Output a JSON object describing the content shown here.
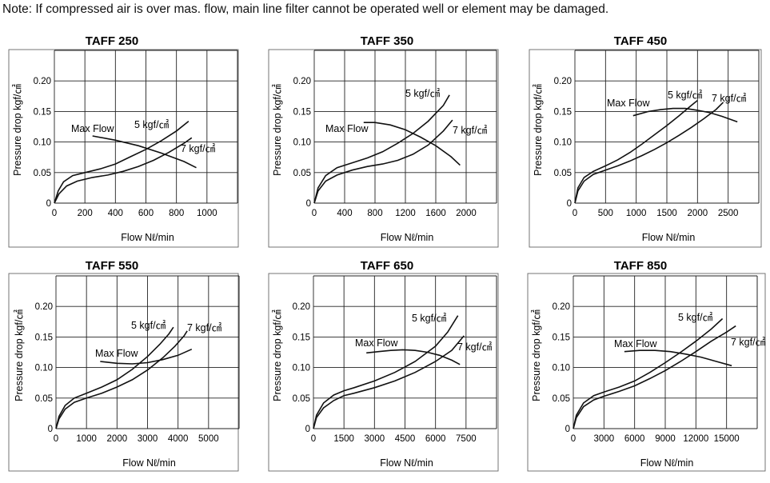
{
  "note": "Note: If compressed air is over mas. flow, main line filter cannot be operated well or element may be damaged.",
  "chart_data": [
    {
      "type": "line",
      "title": "TAFF 250",
      "xlabel": "Flow Nℓ/min",
      "ylabel": "Pressure drop kgf/㎠",
      "x_ticks": [
        0,
        200,
        400,
        600,
        800,
        1000
      ],
      "y_ticks": [
        0,
        0.05,
        0.1,
        0.15,
        0.2
      ],
      "y_tick_labels": [
        "0",
        "0.05",
        "0.10",
        "0.15",
        "0.20"
      ],
      "xlim": [
        0,
        1200
      ],
      "ylim": [
        0,
        0.25
      ],
      "annotations": [
        {
          "text": "Max Flow"
        },
        {
          "text": "5 kgf/㎠"
        },
        {
          "text": "7 kgf/㎠"
        }
      ],
      "series": [
        {
          "name": "5 kgf/㎠",
          "x": [
            0,
            25,
            60,
            120,
            200,
            300,
            400,
            500,
            600,
            700,
            800,
            880
          ],
          "y": [
            0,
            0.02,
            0.035,
            0.045,
            0.05,
            0.056,
            0.064,
            0.076,
            0.088,
            0.102,
            0.118,
            0.134
          ]
        },
        {
          "name": "7 kgf/㎠",
          "x": [
            0,
            30,
            80,
            150,
            250,
            350,
            450,
            550,
            650,
            750,
            850,
            900
          ],
          "y": [
            0,
            0.015,
            0.028,
            0.036,
            0.042,
            0.046,
            0.052,
            0.06,
            0.07,
            0.083,
            0.098,
            0.107
          ]
        },
        {
          "name": "Max Flow",
          "x": [
            250,
            400,
            550,
            700,
            850,
            930
          ],
          "y": [
            0.11,
            0.103,
            0.094,
            0.082,
            0.068,
            0.058
          ]
        }
      ]
    },
    {
      "type": "line",
      "title": "TAFF 350",
      "xlabel": "Flow Nℓ/min",
      "ylabel": "Pressure drop kgf/㎠",
      "x_ticks": [
        0,
        400,
        800,
        1200,
        1600,
        2000
      ],
      "y_ticks": [
        0,
        0.05,
        0.1,
        0.15,
        0.2
      ],
      "y_tick_labels": [
        "0",
        "0.05",
        "0.10",
        "0.15",
        "0.20"
      ],
      "xlim": [
        0,
        2400
      ],
      "ylim": [
        0,
        0.25
      ],
      "annotations": [
        {
          "text": "Max Flow"
        },
        {
          "text": "5 kgf/㎠"
        },
        {
          "text": "7 kgf/㎠"
        }
      ],
      "series": [
        {
          "name": "5 kgf/㎠",
          "x": [
            0,
            50,
            150,
            300,
            500,
            700,
            900,
            1100,
            1300,
            1500,
            1700,
            1780
          ],
          "y": [
            0,
            0.025,
            0.045,
            0.058,
            0.066,
            0.074,
            0.084,
            0.098,
            0.114,
            0.134,
            0.16,
            0.177
          ]
        },
        {
          "name": "7 kgf/㎠",
          "x": [
            0,
            50,
            150,
            300,
            500,
            700,
            900,
            1100,
            1300,
            1500,
            1700,
            1820
          ],
          "y": [
            0,
            0.02,
            0.036,
            0.046,
            0.054,
            0.06,
            0.064,
            0.07,
            0.08,
            0.095,
            0.118,
            0.136
          ]
        },
        {
          "name": "Max Flow",
          "x": [
            650,
            800,
            1000,
            1200,
            1400,
            1600,
            1800,
            1920
          ],
          "y": [
            0.132,
            0.132,
            0.128,
            0.12,
            0.108,
            0.094,
            0.076,
            0.062
          ]
        }
      ]
    },
    {
      "type": "line",
      "title": "TAFF 450",
      "xlabel": "Flow Nℓ/min",
      "ylabel": "Pressure drop kgf/㎠",
      "x_ticks": [
        0,
        500,
        1000,
        1500,
        2000,
        2500
      ],
      "y_ticks": [
        0,
        0.05,
        0.1,
        0.15,
        0.2
      ],
      "y_tick_labels": [
        "0",
        "0.05",
        "0.10",
        "0.15",
        "0.20"
      ],
      "xlim": [
        0,
        3000
      ],
      "ylim": [
        0,
        0.25
      ],
      "annotations": [
        {
          "text": "Max Flow"
        },
        {
          "text": "5 kgf/㎠"
        },
        {
          "text": "7 kgf/㎠"
        }
      ],
      "series": [
        {
          "name": "5 kgf/㎠",
          "x": [
            0,
            50,
            150,
            300,
            500,
            700,
            900,
            1100,
            1300,
            1500,
            1700,
            1900,
            2000
          ],
          "y": [
            0,
            0.025,
            0.042,
            0.052,
            0.061,
            0.071,
            0.083,
            0.097,
            0.112,
            0.127,
            0.143,
            0.16,
            0.168
          ]
        },
        {
          "name": "7 kgf/㎠",
          "x": [
            0,
            50,
            150,
            300,
            500,
            700,
            900,
            1100,
            1300,
            1500,
            1700,
            1900,
            2100,
            2300,
            2420
          ],
          "y": [
            0,
            0.02,
            0.036,
            0.047,
            0.054,
            0.061,
            0.069,
            0.078,
            0.088,
            0.099,
            0.111,
            0.124,
            0.138,
            0.153,
            0.165
          ]
        },
        {
          "name": "Max Flow",
          "x": [
            950,
            1200,
            1400,
            1600,
            1800,
            2000,
            2200,
            2400,
            2650
          ],
          "y": [
            0.143,
            0.15,
            0.153,
            0.155,
            0.155,
            0.152,
            0.148,
            0.142,
            0.133
          ]
        }
      ]
    },
    {
      "type": "line",
      "title": "TAFF 550",
      "xlabel": "Flow Nℓ/min",
      "ylabel": "Pressure drop kgf/㎠",
      "x_ticks": [
        0,
        1000,
        2000,
        3000,
        4000,
        5000
      ],
      "y_ticks": [
        0,
        0.05,
        0.1,
        0.15,
        0.2
      ],
      "y_tick_labels": [
        "0",
        "0.05",
        "0.10",
        "0.15",
        "0.20"
      ],
      "xlim": [
        0,
        6000
      ],
      "ylim": [
        0,
        0.25
      ],
      "annotations": [
        {
          "text": "Max Flow"
        },
        {
          "text": "5 kgf/㎠"
        },
        {
          "text": "7 kgf/㎠"
        }
      ],
      "series": [
        {
          "name": "5 kgf/㎠",
          "x": [
            0,
            100,
            300,
            600,
            1000,
            1500,
            2000,
            2500,
            3000,
            3400,
            3700,
            3850
          ],
          "y": [
            0,
            0.02,
            0.038,
            0.05,
            0.058,
            0.068,
            0.08,
            0.097,
            0.118,
            0.138,
            0.155,
            0.166
          ]
        },
        {
          "name": "7 kgf/㎠",
          "x": [
            0,
            100,
            300,
            600,
            1000,
            1500,
            2000,
            2500,
            3000,
            3500,
            3900,
            4200,
            4300
          ],
          "y": [
            0,
            0.016,
            0.032,
            0.043,
            0.05,
            0.058,
            0.068,
            0.08,
            0.096,
            0.116,
            0.135,
            0.152,
            0.16
          ]
        },
        {
          "name": "Max Flow",
          "x": [
            1450,
            2000,
            2500,
            3000,
            3500,
            4000,
            4450
          ],
          "y": [
            0.11,
            0.107,
            0.106,
            0.108,
            0.113,
            0.12,
            0.13
          ]
        }
      ]
    },
    {
      "type": "line",
      "title": "TAFF 650",
      "xlabel": "Flow Nℓ/min",
      "ylabel": "Pressure drop kgf/㎠",
      "x_ticks": [
        0,
        1500,
        3000,
        4500,
        6000,
        7500
      ],
      "y_ticks": [
        0,
        0.05,
        0.1,
        0.15,
        0.2
      ],
      "y_tick_labels": [
        "0",
        "0.05",
        "0.10",
        "0.15",
        "0.20"
      ],
      "xlim": [
        0,
        9000
      ],
      "ylim": [
        0,
        0.25
      ],
      "annotations": [
        {
          "text": "Max Flow"
        },
        {
          "text": "5 kgf/㎠"
        },
        {
          "text": "7 kgf/㎠"
        }
      ],
      "series": [
        {
          "name": "5 kgf/㎠",
          "x": [
            0,
            150,
            500,
            1000,
            1500,
            2000,
            3000,
            4000,
            5000,
            6000,
            6600,
            7100
          ],
          "y": [
            0,
            0.022,
            0.042,
            0.055,
            0.062,
            0.067,
            0.078,
            0.092,
            0.11,
            0.135,
            0.158,
            0.185
          ]
        },
        {
          "name": "7 kgf/㎠",
          "x": [
            0,
            150,
            500,
            1000,
            1500,
            2000,
            3000,
            4000,
            5000,
            6000,
            6800,
            7400
          ],
          "y": [
            0,
            0.018,
            0.034,
            0.046,
            0.054,
            0.058,
            0.067,
            0.078,
            0.092,
            0.11,
            0.128,
            0.152
          ]
        },
        {
          "name": "Max Flow",
          "x": [
            2600,
            3200,
            3800,
            4400,
            5000,
            5600,
            6200,
            6800,
            7200
          ],
          "y": [
            0.124,
            0.126,
            0.128,
            0.129,
            0.128,
            0.125,
            0.12,
            0.112,
            0.105
          ]
        }
      ]
    },
    {
      "type": "line",
      "title": "TAFF 850",
      "xlabel": "Flow Nℓ/min",
      "ylabel": "Pressure drop kgf/㎠",
      "x_ticks": [
        0,
        3000,
        6000,
        9000,
        12000,
        15000
      ],
      "y_ticks": [
        0,
        0.05,
        0.1,
        0.15,
        0.2
      ],
      "y_tick_labels": [
        "0",
        "0.05",
        "0.10",
        "0.15",
        "0.20"
      ],
      "xlim": [
        0,
        18000
      ],
      "ylim": [
        0,
        0.25
      ],
      "annotations": [
        {
          "text": "Max Flow"
        },
        {
          "text": "5 kgf/㎠"
        },
        {
          "text": "7 kgf/㎠"
        }
      ],
      "series": [
        {
          "name": "5 kgf/㎠",
          "x": [
            0,
            300,
            1000,
            2000,
            3000,
            4500,
            6000,
            7500,
            9000,
            10500,
            12000,
            13500,
            14600
          ],
          "y": [
            0,
            0.022,
            0.042,
            0.054,
            0.06,
            0.068,
            0.078,
            0.092,
            0.108,
            0.125,
            0.143,
            0.163,
            0.18
          ]
        },
        {
          "name": "7 kgf/㎠",
          "x": [
            0,
            300,
            1000,
            2000,
            3000,
            4500,
            6000,
            7500,
            9000,
            10500,
            12000,
            13500,
            15000,
            15900
          ],
          "y": [
            0,
            0.018,
            0.036,
            0.047,
            0.053,
            0.061,
            0.07,
            0.082,
            0.095,
            0.11,
            0.126,
            0.143,
            0.158,
            0.168
          ]
        },
        {
          "name": "Max Flow",
          "x": [
            5000,
            6500,
            8000,
            9500,
            11000,
            12500,
            14000,
            15500
          ],
          "y": [
            0.126,
            0.128,
            0.128,
            0.126,
            0.122,
            0.117,
            0.11,
            0.103
          ]
        }
      ]
    }
  ]
}
